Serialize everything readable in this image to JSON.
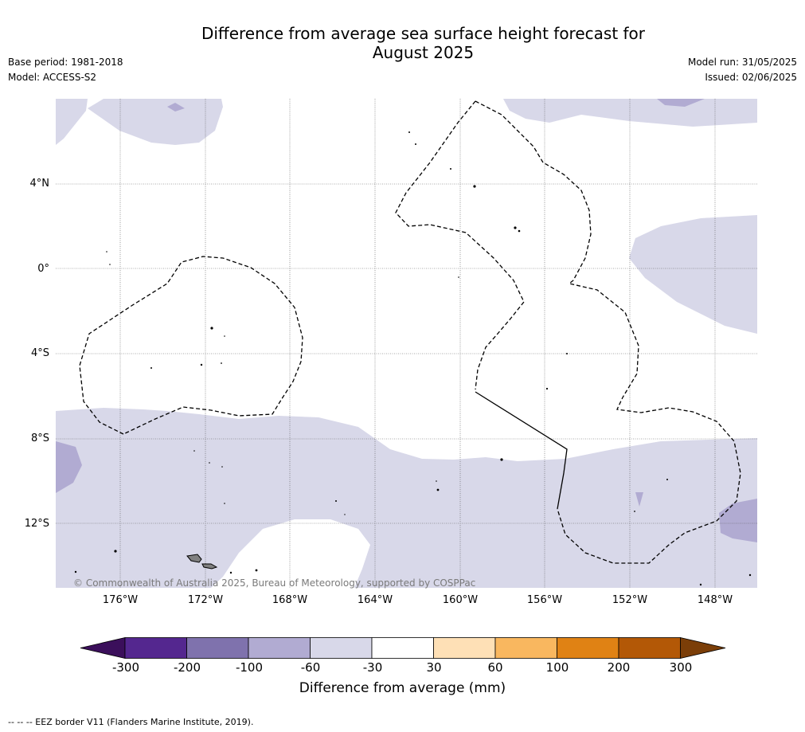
{
  "header": {
    "title_line1": "Difference from average sea surface height forecast for",
    "title_line2": "August 2025",
    "base_period": "Base period: 1981-2018",
    "model": "Model: ACCESS-S2",
    "model_run": "Model run: 31/05/2025",
    "issued": "Issued: 02/06/2025"
  },
  "map": {
    "lat_labels": [
      "4°N",
      "0°",
      "4°S",
      "8°S",
      "12°S"
    ],
    "lon_labels": [
      "176°W",
      "172°W",
      "168°W",
      "164°W",
      "160°W",
      "156°W",
      "152°W",
      "148°W"
    ],
    "copyright": "© Commonwealth of Australia 2025, Bureau of Meteorology, supported by COSPPac",
    "colors": {
      "minus_30_to_minus_60": "#d8d8e9",
      "minus_60_to_minus_100": "#b1abd2",
      "land": "#808080",
      "eez_line": "#000000"
    }
  },
  "legend": {
    "tick_labels": [
      "-300",
      "-200",
      "-100",
      "-60",
      "-30",
      "30",
      "60",
      "100",
      "200",
      "300"
    ],
    "title": "Difference from average (mm)",
    "colors": [
      "#3b0f5b",
      "#54278f",
      "#7f72ad",
      "#b1abd2",
      "#d8d8e9",
      "#ffffff",
      "#fee0b6",
      "#f9b75f",
      "#e08214",
      "#b35806",
      "#7b3e08"
    ]
  },
  "footer": {
    "text": "--  --  -- EEZ border V11 (Flanders Marine Institute, 2019)."
  }
}
